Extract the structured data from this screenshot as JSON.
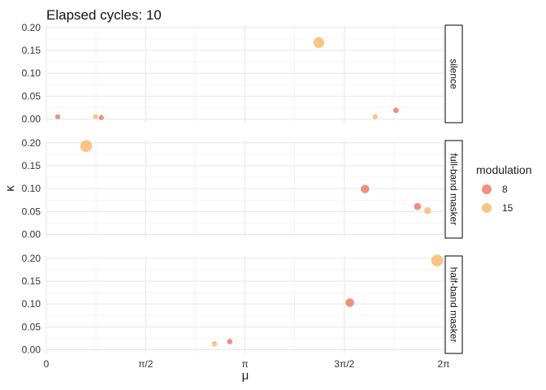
{
  "chart_data": {
    "type": "scatter",
    "title": "Elapsed cycles: 10",
    "xlabel": "μ",
    "ylabel": "κ",
    "xlim": [
      0,
      6.2832
    ],
    "ylim": [
      -0.008,
      0.205
    ],
    "x_ticks": [
      {
        "value": 0,
        "label": "0"
      },
      {
        "value": 1.5708,
        "label": "π/2"
      },
      {
        "value": 3.1416,
        "label": "π"
      },
      {
        "value": 4.7124,
        "label": "3π/2"
      },
      {
        "value": 6.2832,
        "label": "2π"
      }
    ],
    "y_ticks": [
      {
        "value": 0.0,
        "label": "0.00"
      },
      {
        "value": 0.05,
        "label": "0.05"
      },
      {
        "value": 0.1,
        "label": "0.10"
      },
      {
        "value": 0.15,
        "label": "0.15"
      },
      {
        "value": 0.2,
        "label": "0.20"
      }
    ],
    "grid": true,
    "facets": [
      "silence",
      "full-band masker",
      "half-band masker"
    ],
    "legend": {
      "title": "modulation",
      "position": "right",
      "entries": [
        {
          "label": "8",
          "color": "#ee6a4f"
        },
        {
          "label": "15",
          "color": "#f9b25c"
        }
      ]
    },
    "series": [
      {
        "name": "8",
        "color": "#ee6a4f",
        "points": [
          {
            "facet": "silence",
            "x": 0.18,
            "y": 0.005
          },
          {
            "facet": "silence",
            "x": 0.87,
            "y": 0.003
          },
          {
            "facet": "silence",
            "x": 5.53,
            "y": 0.019
          },
          {
            "facet": "full-band masker",
            "x": 5.04,
            "y": 0.099
          },
          {
            "facet": "full-band masker",
            "x": 5.87,
            "y": 0.061
          },
          {
            "facet": "half-band masker",
            "x": 2.9,
            "y": 0.018
          },
          {
            "facet": "half-band masker",
            "x": 4.8,
            "y": 0.103
          }
        ]
      },
      {
        "name": "15",
        "color": "#f9b25c",
        "points": [
          {
            "facet": "silence",
            "x": 0.78,
            "y": 0.005
          },
          {
            "facet": "silence",
            "x": 4.31,
            "y": 0.167
          },
          {
            "facet": "silence",
            "x": 5.2,
            "y": 0.005
          },
          {
            "facet": "full-band masker",
            "x": 0.63,
            "y": 0.193
          },
          {
            "facet": "full-band masker",
            "x": 6.03,
            "y": 0.052
          },
          {
            "facet": "half-band masker",
            "x": 2.66,
            "y": 0.013
          },
          {
            "facet": "half-band masker",
            "x": 6.18,
            "y": 0.195
          }
        ]
      }
    ]
  }
}
